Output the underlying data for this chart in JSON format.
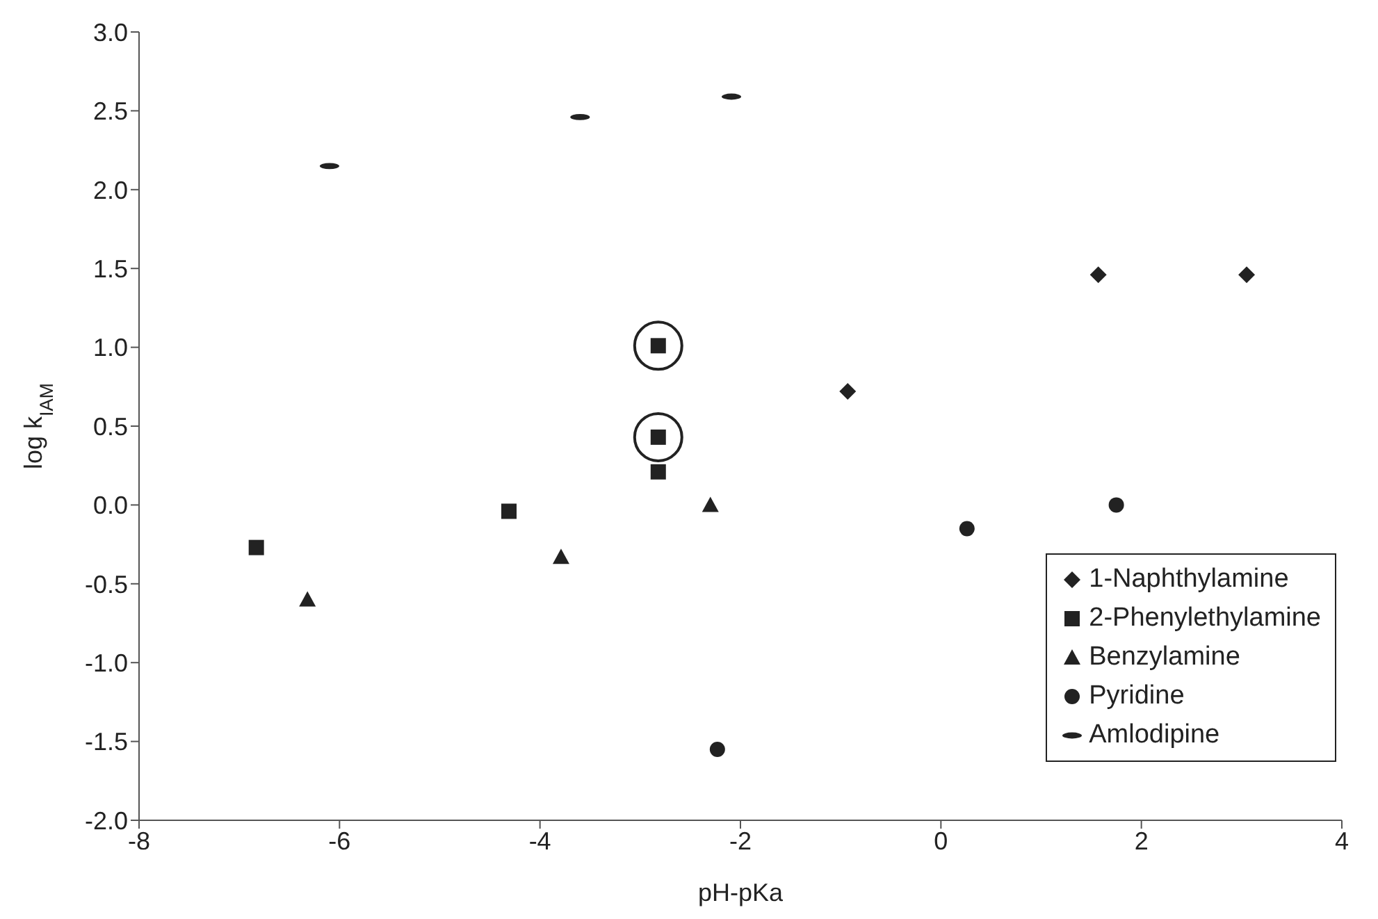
{
  "chart_data": {
    "type": "scatter",
    "xlabel": "pH-pKa",
    "ylabel": "log k$_{IAM}$",
    "xlim": [
      -8,
      4
    ],
    "xticks": [
      -8,
      -6,
      -4,
      -2,
      0,
      2,
      4
    ],
    "ylim": [
      -2.0,
      3.0
    ],
    "yticks": [
      {
        "value": -2,
        "label": "-2.0"
      },
      {
        "value": -1.5,
        "label": "-1.5"
      },
      {
        "value": -1,
        "label": "-1.0"
      },
      {
        "value": -0.5,
        "label": "-0.5"
      },
      {
        "value": 0,
        "label": "0.0"
      },
      {
        "value": 0.5,
        "label": "0.5"
      },
      {
        "value": 1,
        "label": "1.0"
      },
      {
        "value": 1.5,
        "label": "1.5"
      },
      {
        "value": 2,
        "label": "2.0"
      },
      {
        "value": 2.5,
        "label": "2.5"
      },
      {
        "value": 3,
        "label": "3.0"
      }
    ],
    "grid": false,
    "legend": "bottom right",
    "series": [
      {
        "name": "1-Naphthylamine",
        "color": "#222222",
        "marker": "diamond",
        "x": [
          -0.93,
          1.57,
          3.05
        ],
        "values": [
          0.72,
          1.46,
          1.46
        ]
      },
      {
        "name": "2-Phenylethylamine",
        "color": "#222222",
        "marker": "square",
        "x": [
          -6.83,
          -4.31,
          -2.82,
          -2.82,
          -2.82
        ],
        "values": [
          -0.27,
          -0.04,
          1.01,
          0.43,
          0.21
        ]
      },
      {
        "name": "Benzylamine",
        "color": "#222222",
        "marker": "triangle",
        "x": [
          -6.32,
          -3.79,
          -2.3
        ],
        "values": [
          -0.6,
          -0.33,
          0.0
        ]
      },
      {
        "name": "Pyridine",
        "color": "#222222",
        "marker": "circle",
        "x": [
          0.26,
          1.75,
          -2.23
        ],
        "values": [
          -0.15,
          0.0,
          -1.55
        ]
      },
      {
        "name": "Amlodipine",
        "color": "#222222",
        "x": [
          -6.1,
          -3.6,
          -2.09
        ],
        "values": [
          2.15,
          2.46,
          2.59
        ]
      }
    ]
  }
}
